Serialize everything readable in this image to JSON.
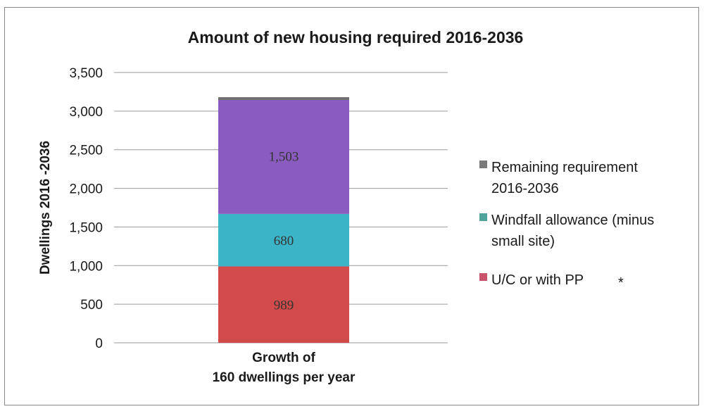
{
  "chart_data": {
    "type": "bar",
    "stacked": true,
    "title": "Amount of new housing required 2016-2036",
    "ylabel": "Dwellings 2016  -2036",
    "xlabel": "",
    "ylim": [
      0,
      3500
    ],
    "yticks": [
      0,
      500,
      1000,
      1500,
      2000,
      2500,
      3000,
      3500
    ],
    "ytick_labels": [
      "0",
      "500",
      "1,000",
      "1,500",
      "2,000",
      "2,500",
      "3,000",
      "3,500"
    ],
    "categories": [
      [
        "Growth of",
        "160 dwellings per year"
      ]
    ],
    "series": [
      {
        "name": "U/C or with PP",
        "values": [
          989
        ],
        "label": "989",
        "color": "#d24b4b"
      },
      {
        "name": "Windfall allowance (minus small site)",
        "values": [
          680
        ],
        "label": "680",
        "color": "#3cb4c8"
      },
      {
        "name": "Remaining requirement 2016-2036",
        "values": [
          1503
        ],
        "label": "1,503",
        "color": "#8a5cbf"
      }
    ],
    "bar_top_color": "#707070",
    "grid": true,
    "legend": {
      "position": "right",
      "items": [
        {
          "lines": [
            "Remaining requirement",
            "2016-2036"
          ],
          "color": "#7a7a7a"
        },
        {
          "lines": [
            "Windfall allowance (minus",
            "small site)"
          ],
          "color": "#4fa39a"
        },
        {
          "lines": [
            "U/C or with PP",
            "*"
          ],
          "color": "#c9536a"
        }
      ]
    }
  }
}
